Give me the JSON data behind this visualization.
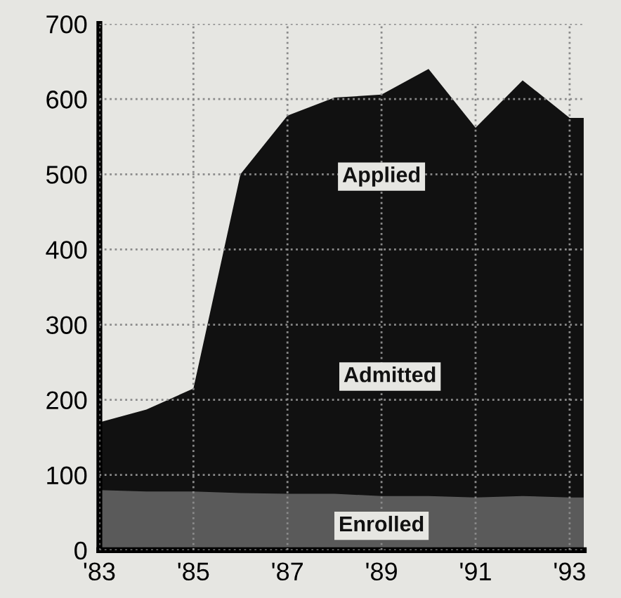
{
  "chart_data": {
    "type": "area",
    "x": [
      1983,
      1984,
      1985,
      1986,
      1987,
      1988,
      1989,
      1990,
      1991,
      1992,
      1993,
      1993.3
    ],
    "series": [
      {
        "name": "Applied",
        "color": "#111111",
        "values": [
          170,
          187,
          215,
          500,
          578,
          602,
          606,
          640,
          562,
          625,
          575,
          575
        ]
      },
      {
        "name": "Enrolled",
        "color": "#5a5a5a",
        "values": [
          80,
          78,
          78,
          76,
          75,
          75,
          72,
          72,
          70,
          72,
          70,
          70
        ]
      }
    ],
    "annotations": [
      "Admitted"
    ],
    "xlim": [
      1983,
      1993.3
    ],
    "ylim": [
      0,
      700
    ],
    "xticks": [
      {
        "value": 1983,
        "label": "'83"
      },
      {
        "value": 1985,
        "label": "'85"
      },
      {
        "value": 1987,
        "label": "'87"
      },
      {
        "value": 1989,
        "label": "'89"
      },
      {
        "value": 1991,
        "label": "'91"
      },
      {
        "value": 1993,
        "label": "'93"
      }
    ],
    "yticks": [
      0,
      100,
      200,
      300,
      400,
      500,
      600,
      700
    ],
    "grid": true,
    "legend": false
  }
}
